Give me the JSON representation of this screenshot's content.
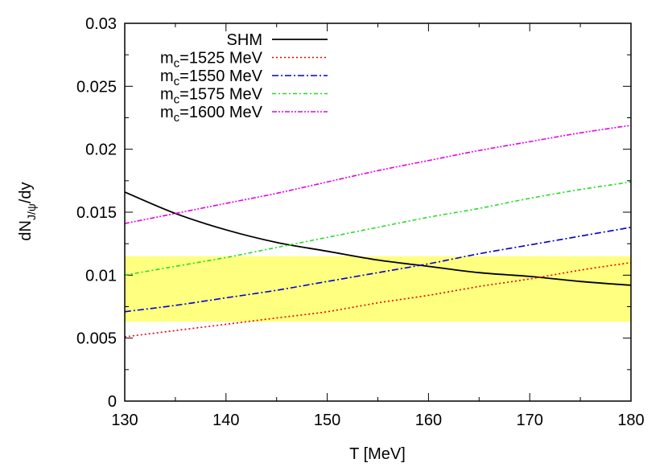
{
  "chart_data": {
    "type": "line",
    "xlabel": "T [MeV]",
    "ylabel": {
      "main": "dN",
      "sub": "J/ψ",
      "tail": "/dy"
    },
    "xlim": [
      130,
      180
    ],
    "ylim": [
      0,
      0.03
    ],
    "x_ticks": [
      130,
      140,
      150,
      160,
      170,
      180
    ],
    "y_ticks": [
      0,
      0.005,
      0.01,
      0.015,
      0.02,
      0.025,
      0.03
    ],
    "y_tick_labels": [
      "0",
      "0.005",
      "0.01",
      "0.015",
      "0.02",
      "0.025",
      "0.03"
    ],
    "grid": false,
    "legend_position": "top-left",
    "band": {
      "y_min": 0.0063,
      "y_max": 0.0115,
      "color": "#ffff80"
    },
    "x": [
      130,
      135,
      140,
      145,
      150,
      155,
      160,
      165,
      170,
      175,
      180
    ],
    "series": [
      {
        "name": "SHM",
        "legend": {
          "main": "SHM",
          "sub": "",
          "tail": ""
        },
        "color": "#000000",
        "dash": "solid",
        "values": [
          0.0166,
          0.0149,
          0.0136,
          0.0126,
          0.0119,
          0.0112,
          0.0107,
          0.0102,
          0.0099,
          0.0095,
          0.0092
        ]
      },
      {
        "name": "mc=1525 MeV",
        "legend": {
          "main": "m",
          "sub": "c",
          "tail": "=1525 MeV"
        },
        "color": "#e60000",
        "dash": "dotted",
        "values": [
          0.0051,
          0.0056,
          0.0061,
          0.0066,
          0.0071,
          0.0078,
          0.0084,
          0.0091,
          0.0097,
          0.0104,
          0.011
        ]
      },
      {
        "name": "mc=1550 MeV",
        "legend": {
          "main": "m",
          "sub": "c",
          "tail": "=1550 MeV"
        },
        "color": "#0000cc",
        "dash": "dashdot",
        "values": [
          0.0071,
          0.0076,
          0.0082,
          0.0088,
          0.0095,
          0.0102,
          0.0109,
          0.0117,
          0.0124,
          0.0131,
          0.0138
        ]
      },
      {
        "name": "mc=1575 MeV",
        "legend": {
          "main": "m",
          "sub": "c",
          "tail": "=1575 MeV"
        },
        "color": "#22dd22",
        "dash": "dashdotdot",
        "values": [
          0.01,
          0.0107,
          0.0114,
          0.0122,
          0.013,
          0.0138,
          0.0146,
          0.0153,
          0.0161,
          0.0168,
          0.0174
        ]
      },
      {
        "name": "mc=1600 MeV",
        "legend": {
          "main": "m",
          "sub": "c",
          "tail": "=1600 MeV"
        },
        "color": "#e600e6",
        "dash": "dashdotdotdot",
        "values": [
          0.0141,
          0.0149,
          0.0157,
          0.0165,
          0.0174,
          0.0183,
          0.0191,
          0.0199,
          0.0206,
          0.0213,
          0.0219
        ]
      }
    ]
  }
}
